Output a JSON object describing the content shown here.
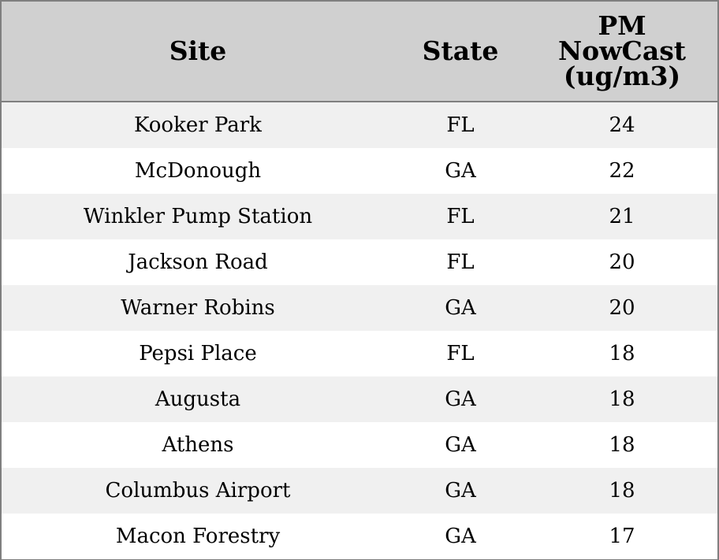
{
  "chart_data": {
    "type": "table",
    "columns": [
      {
        "key": "site",
        "label_lines": [
          "Site"
        ]
      },
      {
        "key": "state",
        "label_lines": [
          "State"
        ]
      },
      {
        "key": "pm",
        "label_lines": [
          "PM",
          "NowCast",
          "(ug/m3)"
        ]
      }
    ],
    "rows": [
      {
        "site": "Kooker Park",
        "state": "FL",
        "pm": "24"
      },
      {
        "site": "McDonough",
        "state": "GA",
        "pm": "22"
      },
      {
        "site": "Winkler Pump Station",
        "state": "FL",
        "pm": "21"
      },
      {
        "site": "Jackson Road",
        "state": "FL",
        "pm": "20"
      },
      {
        "site": "Warner Robins",
        "state": "GA",
        "pm": "20"
      },
      {
        "site": "Pepsi Place",
        "state": "FL",
        "pm": "18"
      },
      {
        "site": "Augusta",
        "state": "GA",
        "pm": "18"
      },
      {
        "site": "Athens",
        "state": "GA",
        "pm": "18"
      },
      {
        "site": "Columbus Airport",
        "state": "GA",
        "pm": "18"
      },
      {
        "site": "Macon Forestry",
        "state": "GA",
        "pm": "17"
      }
    ],
    "header_bg": "#d0d0d0",
    "stripe_bg": "#f0f0f0",
    "border_color": "#7f7f7f"
  }
}
